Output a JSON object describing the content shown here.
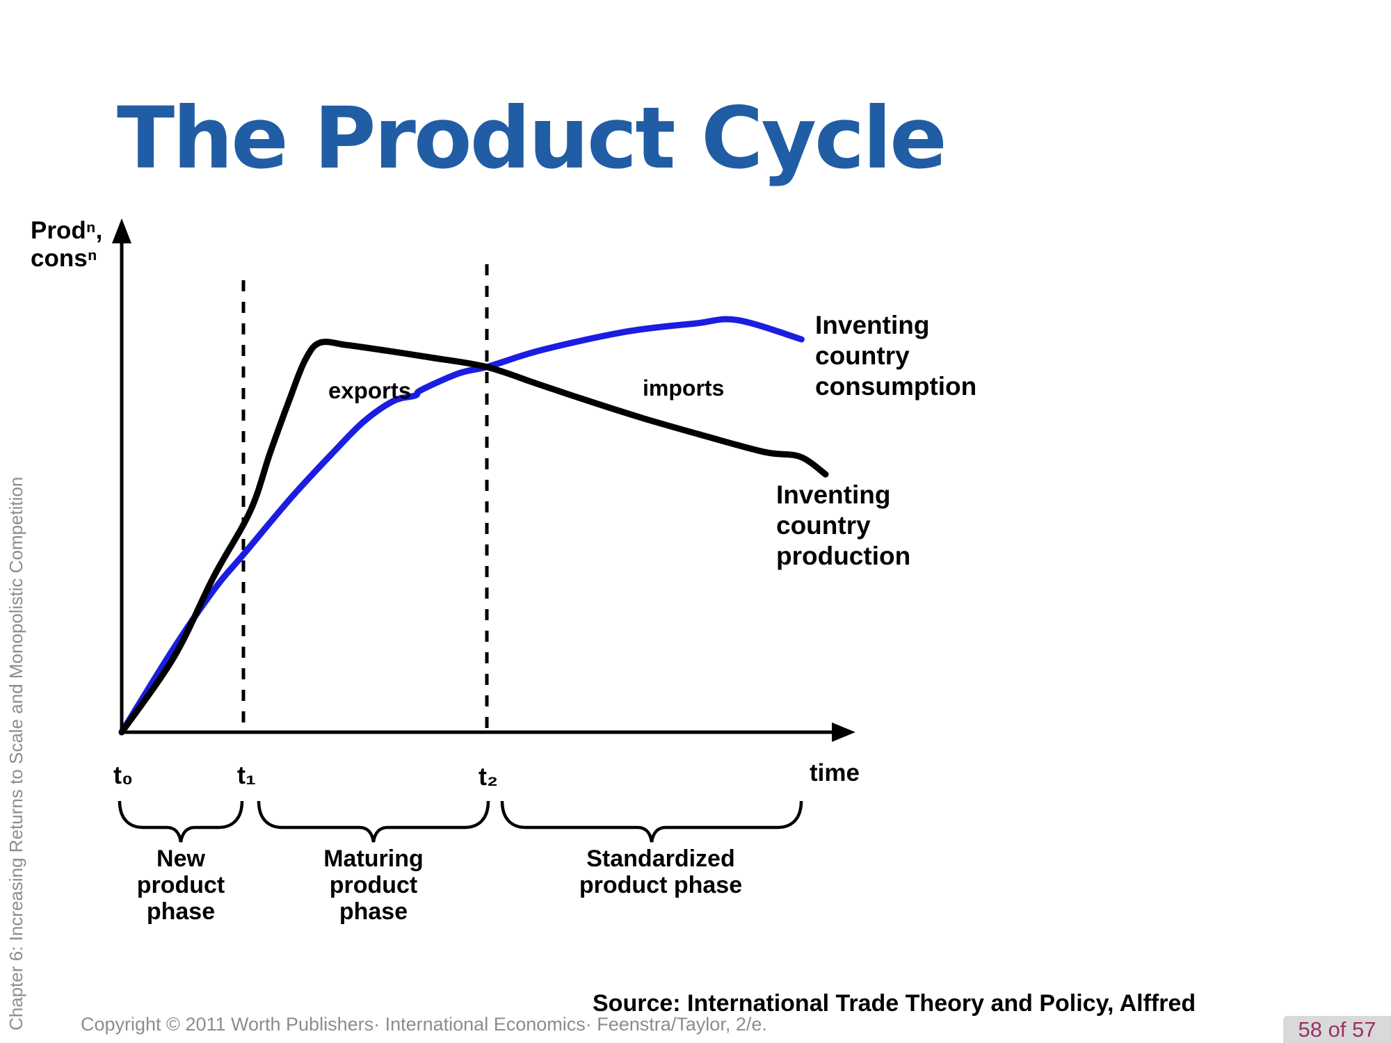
{
  "slide": {
    "title": "The Product Cycle",
    "sidebar_text": "Chapter 6: Increasing Returns to Scale and Monopolistic Competition",
    "source_line": "Source: International Trade Theory and Policy, Alffred",
    "copyright_line": "Copyright © 2011 Worth Publishers· International Economics· Feenstra/Taylor, 2/e.",
    "page_indicator": "58 of 57"
  },
  "chart_data": {
    "type": "line",
    "title": "The Product Cycle",
    "xlabel": "time",
    "ylabel": "Prodⁿ,\nconsⁿ",
    "grid": false,
    "xlim": [
      0,
      103
    ],
    "ylim": [
      0,
      105
    ],
    "x_ticks": [
      {
        "label": "t₀",
        "x": 0
      },
      {
        "label": "t₁",
        "x": 17.2
      },
      {
        "label": "t₂",
        "x": 51.7
      }
    ],
    "legend_position": "labels-at-line-ends",
    "series": [
      {
        "name": "Inventing country production",
        "label": "Inventing\ncountry\nproduction",
        "color": "#000000",
        "points": [
          [
            0,
            0
          ],
          [
            7.4,
            17.9
          ],
          [
            13.0,
            37.0
          ],
          [
            18.2,
            52.7
          ],
          [
            21.0,
            66.5
          ],
          [
            23.8,
            79.5
          ],
          [
            26.0,
            88.8
          ],
          [
            28.1,
            92.9
          ],
          [
            32.0,
            92.3
          ],
          [
            37.9,
            90.9
          ],
          [
            44.0,
            89.3
          ],
          [
            51.7,
            87.1
          ],
          [
            59.0,
            83.0
          ],
          [
            66.5,
            78.8
          ],
          [
            74.0,
            74.8
          ],
          [
            82.3,
            70.8
          ],
          [
            91.1,
            66.8
          ],
          [
            96.1,
            65.7
          ],
          [
            99.7,
            61.5
          ]
        ]
      },
      {
        "name": "Inventing country consumption",
        "label": "Inventing\ncountry\nconsumption",
        "color": "#1b1de0",
        "points": [
          [
            0,
            0
          ],
          [
            7.4,
            20.1
          ],
          [
            13.3,
            34.5
          ],
          [
            17.2,
            42.3
          ],
          [
            24.1,
            56.1
          ],
          [
            30.0,
            66.8
          ],
          [
            34.3,
            74.1
          ],
          [
            38.5,
            79.0
          ],
          [
            41.6,
            80.3
          ],
          [
            42.4,
            81.6
          ],
          [
            47.8,
            85.6
          ],
          [
            51.9,
            87.2
          ],
          [
            59.6,
            91.2
          ],
          [
            71.4,
            95.5
          ],
          [
            81.3,
            97.5
          ],
          [
            87.2,
            98.3
          ],
          [
            96.3,
            93.7
          ]
        ]
      }
    ],
    "annotations": [
      {
        "text": "exports"
      },
      {
        "text": "imports"
      }
    ],
    "phases": [
      {
        "label": "New\nproduct\nphase",
        "from": "t₀",
        "to": "t₁"
      },
      {
        "label": "Maturing\nproduct\nphase",
        "from": "t₁",
        "to": "t₂"
      },
      {
        "label": "Standardized\nproduct phase",
        "from": "t₂",
        "to": "axis end"
      }
    ]
  }
}
